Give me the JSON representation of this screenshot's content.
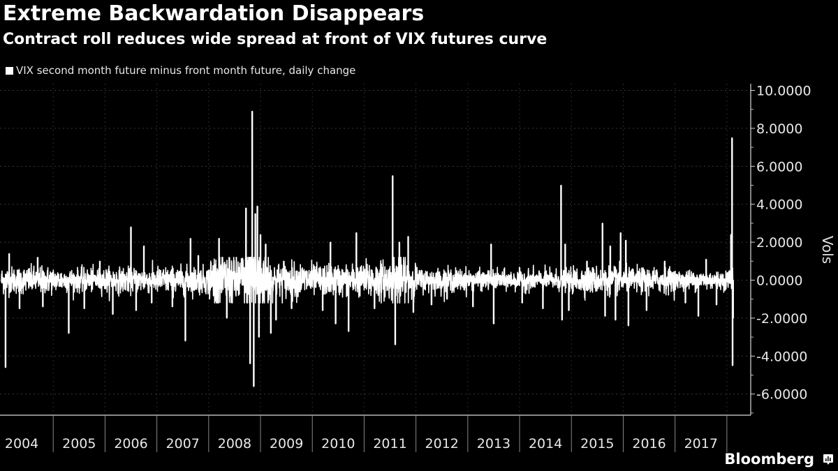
{
  "header": {
    "title": "Extreme Backwardation Disappears",
    "subtitle": "Contract roll reduces wide spread at front of VIX futures curve"
  },
  "legend": {
    "label": "VIX second month future minus front month future, daily change",
    "color": "#ffffff"
  },
  "footer": {
    "brand": "Bloomberg",
    "brand_icon": "bloomberg-chart-icon"
  },
  "chart_data": {
    "type": "bar",
    "title": "Extreme Backwardation Disappears",
    "subtitle": "Contract roll reduces wide spread at front of VIX futures curve",
    "xlabel": "",
    "ylabel": "Vols",
    "x_range": [
      2004.0,
      2018.15
    ],
    "ylim": [
      -7,
      10.5
    ],
    "y_ticks": [
      10,
      8,
      6,
      4,
      2,
      0,
      -2,
      -4,
      -6
    ],
    "y_tick_labels": [
      "10.0000",
      "8.0000",
      "6.0000",
      "4.0000",
      "2.0000",
      "0.0000",
      "-2.0000",
      "-4.0000",
      "-6.0000"
    ],
    "x_tick_labels": [
      "2004",
      "2005",
      "2006",
      "2007",
      "2008",
      "2009",
      "2010",
      "2011",
      "2012",
      "2013",
      "2014",
      "2015",
      "2016",
      "2017"
    ],
    "grid": true,
    "legend_position": "top-left",
    "series_color": "#ffffff",
    "series": [
      {
        "name": "VIX second month future minus front month future, daily change",
        "baseline_noise_by_year": {
          "2004": 0.35,
          "2005": 0.3,
          "2006": 0.32,
          "2007": 0.35,
          "2008": 0.7,
          "2009": 0.45,
          "2010": 0.4,
          "2011": 0.5,
          "2012": 0.3,
          "2013": 0.25,
          "2014": 0.27,
          "2015": 0.35,
          "2016": 0.32,
          "2017": 0.25,
          "2018": 0.3
        },
        "notable_points": [
          {
            "x": 2004.08,
            "y": -4.6
          },
          {
            "x": 2004.15,
            "y": 1.4
          },
          {
            "x": 2004.35,
            "y": -1.5
          },
          {
            "x": 2004.7,
            "y": 1.2
          },
          {
            "x": 2004.8,
            "y": -1.4
          },
          {
            "x": 2005.3,
            "y": -2.8
          },
          {
            "x": 2005.6,
            "y": -1.5
          },
          {
            "x": 2005.9,
            "y": 1.0
          },
          {
            "x": 2006.15,
            "y": -1.8
          },
          {
            "x": 2006.5,
            "y": 2.8
          },
          {
            "x": 2006.6,
            "y": -1.6
          },
          {
            "x": 2006.75,
            "y": 1.8
          },
          {
            "x": 2006.9,
            "y": -1.2
          },
          {
            "x": 2007.3,
            "y": -1.4
          },
          {
            "x": 2007.55,
            "y": -3.2
          },
          {
            "x": 2007.65,
            "y": 2.2
          },
          {
            "x": 2007.8,
            "y": 1.3
          },
          {
            "x": 2008.2,
            "y": 2.2
          },
          {
            "x": 2008.35,
            "y": -2.0
          },
          {
            "x": 2008.72,
            "y": 3.8
          },
          {
            "x": 2008.8,
            "y": -4.4
          },
          {
            "x": 2008.84,
            "y": 8.9
          },
          {
            "x": 2008.87,
            "y": -5.6
          },
          {
            "x": 2008.9,
            "y": 3.5
          },
          {
            "x": 2008.94,
            "y": 3.9
          },
          {
            "x": 2008.97,
            "y": -3.0
          },
          {
            "x": 2009.0,
            "y": 2.4
          },
          {
            "x": 2009.1,
            "y": 1.9
          },
          {
            "x": 2009.2,
            "y": -2.8
          },
          {
            "x": 2009.3,
            "y": -2.1
          },
          {
            "x": 2009.45,
            "y": 1.0
          },
          {
            "x": 2009.6,
            "y": -1.5
          },
          {
            "x": 2010.2,
            "y": -1.6
          },
          {
            "x": 2010.35,
            "y": 2.0
          },
          {
            "x": 2010.45,
            "y": -2.3
          },
          {
            "x": 2010.7,
            "y": -2.7
          },
          {
            "x": 2010.85,
            "y": 2.5
          },
          {
            "x": 2011.2,
            "y": -1.5
          },
          {
            "x": 2011.55,
            "y": 5.5
          },
          {
            "x": 2011.6,
            "y": -3.4
          },
          {
            "x": 2011.68,
            "y": 2.0
          },
          {
            "x": 2011.85,
            "y": 2.3
          },
          {
            "x": 2011.95,
            "y": -1.7
          },
          {
            "x": 2012.3,
            "y": -1.3
          },
          {
            "x": 2012.6,
            "y": -1.0
          },
          {
            "x": 2013.1,
            "y": -1.4
          },
          {
            "x": 2013.45,
            "y": 1.9
          },
          {
            "x": 2013.5,
            "y": -2.3
          },
          {
            "x": 2014.05,
            "y": -1.2
          },
          {
            "x": 2014.45,
            "y": -1.5
          },
          {
            "x": 2014.8,
            "y": 5.0
          },
          {
            "x": 2014.82,
            "y": -2.1
          },
          {
            "x": 2014.88,
            "y": 1.9
          },
          {
            "x": 2014.95,
            "y": -1.6
          },
          {
            "x": 2015.3,
            "y": 1.0
          },
          {
            "x": 2015.6,
            "y": 3.0
          },
          {
            "x": 2015.65,
            "y": -1.9
          },
          {
            "x": 2015.75,
            "y": 1.8
          },
          {
            "x": 2015.85,
            "y": -2.1
          },
          {
            "x": 2015.95,
            "y": 2.5
          },
          {
            "x": 2016.05,
            "y": 2.1
          },
          {
            "x": 2016.1,
            "y": -2.4
          },
          {
            "x": 2016.45,
            "y": -1.6
          },
          {
            "x": 2016.8,
            "y": 1.0
          },
          {
            "x": 2017.2,
            "y": -1.2
          },
          {
            "x": 2017.45,
            "y": -1.9
          },
          {
            "x": 2017.6,
            "y": 1.1
          },
          {
            "x": 2017.8,
            "y": -1.3
          },
          {
            "x": 2018.05,
            "y": 0.5
          },
          {
            "x": 2018.08,
            "y": 2.4
          },
          {
            "x": 2018.1,
            "y": 7.5
          },
          {
            "x": 2018.11,
            "y": -4.5
          },
          {
            "x": 2018.12,
            "y": -2.0
          }
        ]
      }
    ]
  }
}
